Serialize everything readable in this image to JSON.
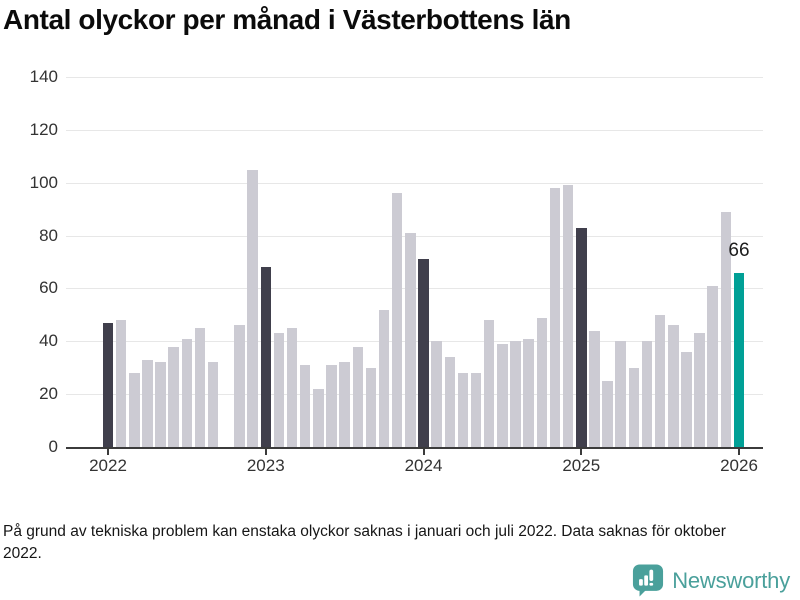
{
  "title": "Antal olyckor per månad i Västerbottens län",
  "footnote": "På grund av tekniska problem kan enstaka olyckor saknas i januari och juli 2022. Data saknas för oktober 2022.",
  "annotation": {
    "value": "66"
  },
  "branding": {
    "name": "Newsworthy",
    "icon": "newsworthy-speech-bubble-chart-icon",
    "color": "#4AA09B"
  },
  "colors": {
    "bar_default": "#CCCBD3",
    "bar_january": "#403F4C",
    "bar_highlight": "#00A096",
    "gridline": "#E7E7E7",
    "axis": "#3B3B3B",
    "label_text": "#333333"
  },
  "chart_data": {
    "type": "bar",
    "title": "Antal olyckor per månad i Västerbottens län",
    "xlabel": "",
    "ylabel": "",
    "ylim": [
      0,
      140
    ],
    "y_ticks": [
      0,
      20,
      40,
      60,
      80,
      100,
      120,
      140
    ],
    "x_tick_labels": [
      "2022",
      "2023",
      "2024",
      "2025",
      "2026"
    ],
    "grid": "horizontal",
    "legend": "none",
    "missing_months": [
      "2022-10"
    ],
    "highlighted_month": "2026-01",
    "dark_months": [
      "2022-01",
      "2023-01",
      "2024-01",
      "2025-01"
    ],
    "months": [
      "2022-01",
      "2022-02",
      "2022-03",
      "2022-04",
      "2022-05",
      "2022-06",
      "2022-07",
      "2022-08",
      "2022-09",
      "2022-10",
      "2022-11",
      "2022-12",
      "2023-01",
      "2023-02",
      "2023-03",
      "2023-04",
      "2023-05",
      "2023-06",
      "2023-07",
      "2023-08",
      "2023-09",
      "2023-10",
      "2023-11",
      "2023-12",
      "2024-01",
      "2024-02",
      "2024-03",
      "2024-04",
      "2024-05",
      "2024-06",
      "2024-07",
      "2024-08",
      "2024-09",
      "2024-10",
      "2024-11",
      "2024-12",
      "2025-01",
      "2025-02",
      "2025-03",
      "2025-04",
      "2025-05",
      "2025-06",
      "2025-07",
      "2025-08",
      "2025-09",
      "2025-10",
      "2025-11",
      "2025-12",
      "2026-01"
    ],
    "values": [
      47,
      48,
      28,
      33,
      32,
      38,
      41,
      45,
      32,
      null,
      46,
      105,
      68,
      43,
      45,
      31,
      22,
      31,
      32,
      38,
      30,
      52,
      96,
      81,
      71,
      40,
      34,
      28,
      28,
      48,
      39,
      40,
      41,
      49,
      98,
      99,
      83,
      44,
      25,
      40,
      30,
      40,
      50,
      46,
      36,
      43,
      61,
      89,
      66
    ],
    "annotations": [
      {
        "month": "2026-01",
        "text": "66"
      }
    ]
  }
}
